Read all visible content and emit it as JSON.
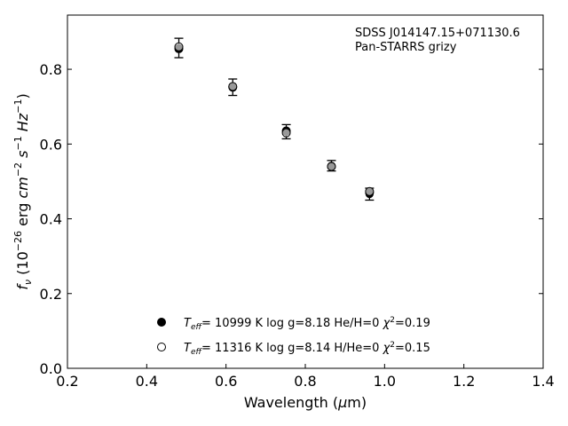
{
  "chart_data": {
    "type": "scatter",
    "xlabel": "Wavelength (μm)",
    "ylabel": "f_ν (10^−26 erg cm^−2 s^−1 Hz^−1)",
    "xlim": [
      0.2,
      1.4
    ],
    "ylim": [
      0.0,
      0.945
    ],
    "x_ticks": [
      "0.2",
      "0.4",
      "0.6",
      "0.8",
      "1.0",
      "1.2",
      "1.4"
    ],
    "y_ticks": [
      "0.0",
      "0.2",
      "0.4",
      "0.6",
      "0.8"
    ],
    "grid": false,
    "annotations": [
      "SDSS J014147.15+071130.6",
      "Pan-STARRS grizy"
    ],
    "series": [
      {
        "legend": "T_eff= 10999 K  log g=8.18  He/H=0  χ²=0.19",
        "marker": "filled-circle",
        "x": [
          0.481,
          0.617,
          0.752,
          0.866,
          0.962
        ],
        "y": [
          0.855,
          0.752,
          0.635,
          0.54,
          0.47
        ]
      },
      {
        "legend": "T_eff= 11316 K  log g=8.14  H/He=0  χ²=0.15",
        "marker": "open-circle",
        "x": [
          0.481,
          0.617,
          0.752,
          0.866,
          0.962
        ],
        "y": [
          0.86,
          0.754,
          0.63,
          0.54,
          0.473
        ]
      }
    ],
    "observed": {
      "x": [
        0.481,
        0.617,
        0.752,
        0.866,
        0.962
      ],
      "y": [
        0.857,
        0.752,
        0.633,
        0.542,
        0.466
      ],
      "yerr": [
        0.026,
        0.022,
        0.019,
        0.014,
        0.016
      ]
    }
  }
}
